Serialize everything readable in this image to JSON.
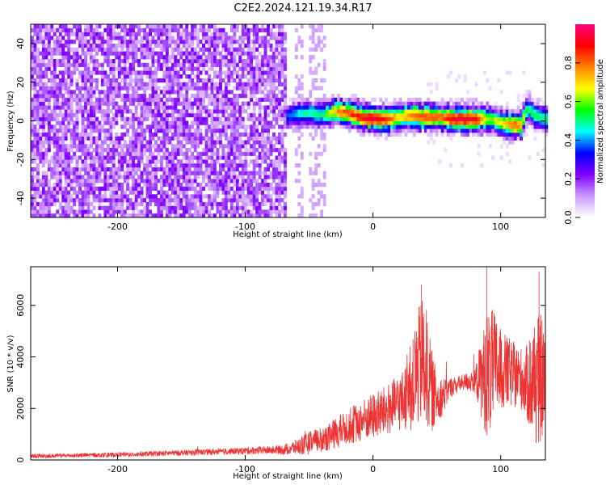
{
  "title": "C2E2.2024.121.19.34.R17",
  "chart_data": [
    {
      "type": "heatmap",
      "xlabel": "Height of straight line (km)",
      "ylabel": "Frequency (Hz)",
      "xlim": [
        -268,
        135
      ],
      "ylim": [
        -50,
        50
      ],
      "x_ticks": [
        -200,
        -100,
        0,
        100
      ],
      "y_ticks": [
        -40,
        -20,
        0,
        20,
        40
      ],
      "grid": false,
      "colorbar": {
        "label": "Normalized spectral amplitude",
        "range": [
          0,
          1
        ],
        "ticks": [
          0.0,
          0.2,
          0.4,
          0.6,
          0.8
        ],
        "colormap": [
          "#ffffff",
          "#cc99ff",
          "#8000ff",
          "#0000ff",
          "#00ffff",
          "#00ff00",
          "#ffff00",
          "#ff8000",
          "#ff0000",
          "#ff0080"
        ]
      },
      "noise_region_x": [
        -268,
        -68
      ],
      "noise_stripes_x": [
        [
          -62,
          -56
        ],
        [
          -52,
          -39
        ]
      ],
      "signal_ridge": {
        "x": [
          -70,
          -60,
          -50,
          -40,
          -30,
          -20,
          -10,
          0,
          10,
          20,
          30,
          40,
          50,
          60,
          70,
          80,
          90,
          100,
          110,
          115,
          120,
          125,
          135
        ],
        "center_hz": [
          1,
          3,
          3,
          2,
          4,
          3,
          1,
          0,
          0,
          1,
          2,
          1,
          1,
          0,
          0,
          0,
          0,
          -2,
          -3,
          -3,
          6,
          2,
          0
        ],
        "peak_amplitude": [
          0.35,
          0.45,
          0.5,
          0.5,
          0.75,
          0.85,
          0.9,
          0.95,
          0.85,
          0.7,
          0.8,
          0.85,
          0.8,
          0.9,
          0.95,
          0.9,
          0.6,
          0.7,
          0.8,
          0.75,
          0.5,
          0.55,
          0.5
        ]
      }
    },
    {
      "type": "line",
      "xlabel": "Height of straight line (km)",
      "ylabel": "SNR (10 * v/v)",
      "xlim": [
        -268,
        135
      ],
      "ylim": [
        0,
        7500
      ],
      "x_ticks": [
        -200,
        -100,
        0,
        100
      ],
      "y_ticks": [
        0,
        2000,
        4000,
        6000
      ],
      "grid": false,
      "color": "#ee3333",
      "series": [
        {
          "x": [
            -268,
            -250,
            -230,
            -200,
            -180,
            -150,
            -120,
            -100,
            -80,
            -70,
            -60,
            -50,
            -40,
            -30,
            -20,
            -10,
            0,
            10,
            20,
            25,
            30,
            35,
            40,
            45,
            50,
            55,
            60,
            70,
            80,
            85,
            90,
            95,
            100,
            105,
            110,
            115,
            120,
            125,
            130,
            135
          ],
          "values": [
            150,
            160,
            180,
            200,
            230,
            280,
            320,
            360,
            380,
            400,
            500,
            650,
            800,
            1000,
            1300,
            1500,
            1700,
            1900,
            2200,
            2400,
            2800,
            3500,
            4000,
            2800,
            2400,
            2500,
            2800,
            3000,
            3100,
            3200,
            3300,
            3600,
            3500,
            3400,
            3300,
            3200,
            3000,
            3000,
            3100,
            3300
          ],
          "spread": [
            80,
            80,
            90,
            90,
            100,
            110,
            120,
            140,
            160,
            200,
            300,
            450,
            500,
            600,
            700,
            800,
            900,
            1000,
            1100,
            1200,
            1800,
            2300,
            2600,
            1800,
            1000,
            700,
            400,
            300,
            500,
            1600,
            2600,
            2200,
            1600,
            1400,
            1300,
            1200,
            1400,
            2400,
            2600,
            2200
          ]
        }
      ],
      "annotated_peaks": [
        {
          "x": 38,
          "y": 6800
        },
        {
          "x": 89,
          "y": 7500
        },
        {
          "x": 130,
          "y": 7300
        }
      ]
    }
  ]
}
